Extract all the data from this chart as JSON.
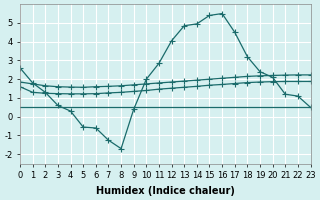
{
  "title": "",
  "xlabel": "Humidex (Indice chaleur)",
  "ylabel": "",
  "background_color": "#d6f0f0",
  "grid_color": "#ffffff",
  "line_color": "#1a6b6b",
  "x_ticks": [
    0,
    1,
    2,
    3,
    4,
    5,
    6,
    7,
    8,
    9,
    10,
    11,
    12,
    13,
    14,
    15,
    16,
    17,
    18,
    19,
    20,
    21,
    22,
    23
  ],
  "xlim": [
    0,
    23
  ],
  "ylim": [
    -2.5,
    6
  ],
  "y_ticks": [
    -2,
    -1,
    0,
    1,
    2,
    3,
    4,
    5
  ],
  "series1_x": [
    0,
    1,
    2,
    3,
    4,
    5,
    6,
    7,
    8,
    9,
    10,
    11,
    12,
    13,
    14,
    15,
    16,
    17,
    18,
    19,
    20,
    21,
    22,
    23
  ],
  "series1_y": [
    2.6,
    1.8,
    1.3,
    0.6,
    0.3,
    -0.55,
    -0.6,
    -1.25,
    -1.7,
    0.4,
    2.0,
    2.85,
    4.05,
    4.85,
    4.95,
    5.4,
    5.5,
    4.5,
    3.2,
    2.4,
    2.1,
    1.2,
    1.1,
    0.5
  ],
  "series2_x": [
    0,
    1,
    2,
    3,
    4,
    5,
    6,
    7,
    8,
    9,
    10,
    11,
    12,
    13,
    14,
    15,
    16,
    17,
    18,
    19,
    20,
    21,
    22,
    23
  ],
  "series2_y": [
    1.85,
    1.75,
    1.65,
    1.6,
    1.58,
    1.57,
    1.6,
    1.62,
    1.65,
    1.7,
    1.75,
    1.8,
    1.85,
    1.9,
    1.95,
    2.0,
    2.05,
    2.1,
    2.15,
    2.18,
    2.2,
    2.22,
    2.23,
    2.23
  ],
  "series3_x": [
    0,
    1,
    2,
    3,
    4,
    5,
    6,
    7,
    8,
    9,
    10,
    11,
    12,
    13,
    14,
    15,
    16,
    17,
    18,
    19,
    20,
    21,
    22,
    23
  ],
  "series3_y": [
    1.6,
    1.3,
    1.25,
    1.23,
    1.22,
    1.22,
    1.23,
    1.27,
    1.3,
    1.35,
    1.4,
    1.47,
    1.52,
    1.57,
    1.62,
    1.68,
    1.72,
    1.77,
    1.82,
    1.85,
    1.87,
    1.88,
    1.88,
    1.88
  ],
  "series4_x": [
    0,
    1,
    2,
    3,
    4,
    5,
    6,
    7,
    8,
    9,
    10,
    11,
    12,
    13,
    14,
    15,
    16,
    17,
    18,
    19,
    20,
    21,
    22,
    23
  ],
  "series4_y": [
    0.5,
    0.5,
    0.5,
    0.5,
    0.5,
    0.5,
    0.5,
    0.5,
    0.5,
    0.5,
    0.5,
    0.5,
    0.5,
    0.5,
    0.5,
    0.5,
    0.5,
    0.5,
    0.5,
    0.5,
    0.5,
    0.5,
    0.5,
    0.5
  ]
}
